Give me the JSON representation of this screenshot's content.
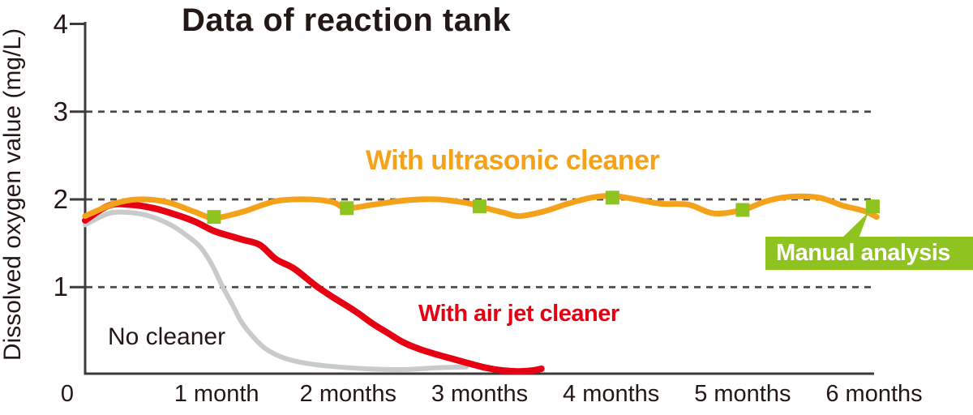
{
  "chart_data": {
    "type": "line",
    "title": "Data of reaction tank",
    "ylabel": "Dissolved oxygen value (mg/L)",
    "xlabel": "",
    "ylim": [
      0,
      4
    ],
    "xlim": [
      0,
      6
    ],
    "legend_position": "inline-labels",
    "grid": "horizontal dashed",
    "gridlines_y": [
      1,
      2,
      3
    ],
    "y_ticks": [
      {
        "value": 4,
        "label": "4"
      },
      {
        "value": 3,
        "label": "3"
      },
      {
        "value": 2,
        "label": "2"
      },
      {
        "value": 1,
        "label": "1"
      }
    ],
    "x_ticks": [
      {
        "value": 0,
        "label": "0"
      },
      {
        "value": 1,
        "label": "1 month"
      },
      {
        "value": 2,
        "label": "2 months"
      },
      {
        "value": 3,
        "label": "3 months"
      },
      {
        "value": 4,
        "label": "4 months"
      },
      {
        "value": 5,
        "label": "5 months"
      },
      {
        "value": 6,
        "label": "6 months"
      }
    ],
    "series": [
      {
        "name": "No cleaner",
        "color": "#c9caca",
        "stroke_width": 6,
        "points": [
          [
            0,
            1.71
          ],
          [
            0.18,
            1.84
          ],
          [
            0.34,
            1.85
          ],
          [
            0.49,
            1.81
          ],
          [
            0.65,
            1.71
          ],
          [
            0.78,
            1.58
          ],
          [
            0.88,
            1.45
          ],
          [
            0.97,
            1.24
          ],
          [
            1.04,
            1.02
          ],
          [
            1.12,
            0.8
          ],
          [
            1.19,
            0.6
          ],
          [
            1.28,
            0.43
          ],
          [
            1.37,
            0.3
          ],
          [
            1.5,
            0.2
          ],
          [
            1.65,
            0.14
          ],
          [
            1.85,
            0.1
          ],
          [
            2.13,
            0.07
          ],
          [
            2.4,
            0.06
          ],
          [
            2.68,
            0.08
          ],
          [
            2.9,
            0.09
          ]
        ]
      },
      {
        "name": "With air jet cleaner",
        "color": "#e60012",
        "stroke_width": 8,
        "points": [
          [
            0,
            1.76
          ],
          [
            0.18,
            1.93
          ],
          [
            0.34,
            1.94
          ],
          [
            0.52,
            1.9
          ],
          [
            0.68,
            1.83
          ],
          [
            0.83,
            1.75
          ],
          [
            0.98,
            1.64
          ],
          [
            1.11,
            1.58
          ],
          [
            1.2,
            1.54
          ],
          [
            1.33,
            1.48
          ],
          [
            1.45,
            1.32
          ],
          [
            1.59,
            1.21
          ],
          [
            1.76,
            1.01
          ],
          [
            1.9,
            0.87
          ],
          [
            2.05,
            0.73
          ],
          [
            2.19,
            0.58
          ],
          [
            2.31,
            0.47
          ],
          [
            2.42,
            0.37
          ],
          [
            2.55,
            0.29
          ],
          [
            2.68,
            0.23
          ],
          [
            2.8,
            0.18
          ],
          [
            2.92,
            0.13
          ],
          [
            3.05,
            0.08
          ],
          [
            3.18,
            0.05
          ],
          [
            3.3,
            0.04
          ],
          [
            3.4,
            0.05
          ],
          [
            3.47,
            0.07
          ]
        ]
      },
      {
        "name": "With ultrasonic cleaner",
        "color": "#f5a21b",
        "stroke_width": 7,
        "points": [
          [
            0,
            1.81
          ],
          [
            0.22,
            1.95
          ],
          [
            0.4,
            2.0
          ],
          [
            0.62,
            1.97
          ],
          [
            0.83,
            1.86
          ],
          [
            0.98,
            1.79
          ],
          [
            1.2,
            1.86
          ],
          [
            1.45,
            1.98
          ],
          [
            1.7,
            2.0
          ],
          [
            1.88,
            1.97
          ],
          [
            1.99,
            1.9
          ],
          [
            2.19,
            1.94
          ],
          [
            2.44,
            1.99
          ],
          [
            2.68,
            2.0
          ],
          [
            2.9,
            1.96
          ],
          [
            3.0,
            1.92
          ],
          [
            3.18,
            1.85
          ],
          [
            3.3,
            1.81
          ],
          [
            3.48,
            1.86
          ],
          [
            3.67,
            1.95
          ],
          [
            3.85,
            2.02
          ],
          [
            4.01,
            2.04
          ],
          [
            4.19,
            2.0
          ],
          [
            4.38,
            1.95
          ],
          [
            4.59,
            1.94
          ],
          [
            4.78,
            1.84
          ],
          [
            5.0,
            1.88
          ],
          [
            5.18,
            1.98
          ],
          [
            5.36,
            2.03
          ],
          [
            5.58,
            2.02
          ],
          [
            5.76,
            1.93
          ],
          [
            5.92,
            1.87
          ],
          [
            6.02,
            1.8
          ]
        ]
      }
    ],
    "markers": {
      "label": "Manual analysis",
      "shape": "square",
      "size": 17,
      "color": "#8fc31f",
      "points": [
        [
          0.98,
          1.8
        ],
        [
          1.99,
          1.9
        ],
        [
          3.0,
          1.92
        ],
        [
          4.01,
          2.02
        ],
        [
          5.0,
          1.88
        ],
        [
          5.99,
          1.92
        ]
      ]
    },
    "colors": {
      "axis": "#3e3a39",
      "grid": "#4c4948",
      "text": "#231815",
      "callout_bg": "#8fc31f",
      "callout_text": "#ffffff"
    }
  }
}
